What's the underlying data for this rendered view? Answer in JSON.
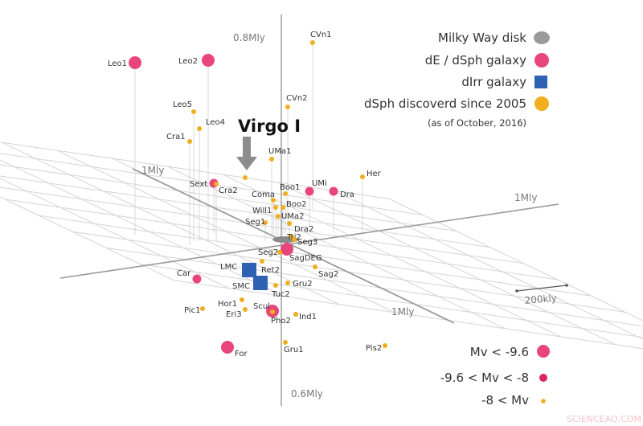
{
  "axes": {
    "z_top": "0.8Mly",
    "z_bottom": "0.6Mly",
    "x_left": "1Mly",
    "x_right": "1Mly",
    "y_right": "1Mly",
    "scale_bar": "200kly"
  },
  "highlight": {
    "label": "Virgo I",
    "arrow_color": "#8c8c8c"
  },
  "legend": {
    "items": [
      {
        "label": "Milky Way disk",
        "shape": "ellipse",
        "color": "#9a9a9a"
      },
      {
        "label": "dE / dSph galaxy",
        "shape": "circle",
        "color": "#e8467a"
      },
      {
        "label": "dIrr galaxy",
        "shape": "square",
        "color": "#2f62b4"
      },
      {
        "label": "dSph discoverd since 2005",
        "shape": "circle",
        "color": "#f2ae1c"
      }
    ],
    "note": "(as of October, 2016)"
  },
  "magnitude_legend": [
    {
      "label": "Mv < -9.6",
      "size": "large"
    },
    {
      "label": "-9.6 < Mv < -8",
      "size": "medium"
    },
    {
      "label": "-8 < Mv",
      "size": "small"
    }
  ],
  "galaxies": [
    {
      "name": "Leo1",
      "type": "dsph",
      "size": "large"
    },
    {
      "name": "Leo2",
      "type": "dsph",
      "size": "large"
    },
    {
      "name": "Leo5",
      "type": "new",
      "size": "small"
    },
    {
      "name": "Leo4",
      "type": "new",
      "size": "small"
    },
    {
      "name": "Cra1",
      "type": "new",
      "size": "small"
    },
    {
      "name": "CVn1",
      "type": "new",
      "size": "small"
    },
    {
      "name": "CVn2",
      "type": "new",
      "size": "small"
    },
    {
      "name": "UMa1",
      "type": "new",
      "size": "small"
    },
    {
      "name": "Sext",
      "type": "dsph",
      "size": "medium"
    },
    {
      "name": "Cra2",
      "type": "new",
      "size": "small"
    },
    {
      "name": "Her",
      "type": "new",
      "size": "small"
    },
    {
      "name": "UMi",
      "type": "dsph",
      "size": "medium"
    },
    {
      "name": "Dra",
      "type": "dsph",
      "size": "medium"
    },
    {
      "name": "Boo1",
      "type": "new",
      "size": "small"
    },
    {
      "name": "Coma",
      "type": "new",
      "size": "small"
    },
    {
      "name": "Boo2",
      "type": "new",
      "size": "small"
    },
    {
      "name": "Will1",
      "type": "new",
      "size": "small"
    },
    {
      "name": "UMa2",
      "type": "new",
      "size": "small"
    },
    {
      "name": "Seg1",
      "type": "new",
      "size": "small"
    },
    {
      "name": "Dra2",
      "type": "new",
      "size": "small"
    },
    {
      "name": "Tri2",
      "type": "new",
      "size": "small"
    },
    {
      "name": "Seg3",
      "type": "new",
      "size": "small"
    },
    {
      "name": "SagDEG",
      "type": "dsph",
      "size": "large"
    },
    {
      "name": "Seg2",
      "type": "new",
      "size": "small"
    },
    {
      "name": "Ret2",
      "type": "new",
      "size": "small"
    },
    {
      "name": "LMC",
      "type": "dirr",
      "size": "large"
    },
    {
      "name": "SMC",
      "type": "dirr",
      "size": "large"
    },
    {
      "name": "Car",
      "type": "dsph",
      "size": "medium"
    },
    {
      "name": "Sag2",
      "type": "new",
      "size": "small"
    },
    {
      "name": "Gru2",
      "type": "new",
      "size": "small"
    },
    {
      "name": "Tuc2",
      "type": "new",
      "size": "small"
    },
    {
      "name": "Hor1",
      "type": "new",
      "size": "small"
    },
    {
      "name": "Pic1",
      "type": "new",
      "size": "small"
    },
    {
      "name": "Eri3",
      "type": "new",
      "size": "small"
    },
    {
      "name": "Scul",
      "type": "dsph",
      "size": "large"
    },
    {
      "name": "Pho2",
      "type": "new",
      "size": "small"
    },
    {
      "name": "Ind1",
      "type": "new",
      "size": "small"
    },
    {
      "name": "For",
      "type": "dsph",
      "size": "large"
    },
    {
      "name": "Gru1",
      "type": "new",
      "size": "small"
    },
    {
      "name": "Pis2",
      "type": "new",
      "size": "small"
    }
  ],
  "watermark": "SCIENCEAQ.COM"
}
